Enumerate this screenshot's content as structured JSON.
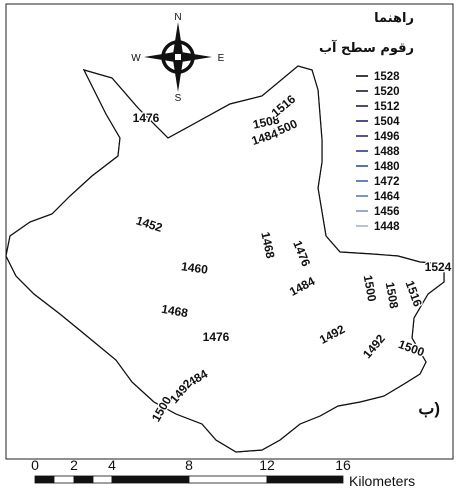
{
  "legend": {
    "title": "راهنما",
    "subtitle": "رقوم سطح آب",
    "items": [
      {
        "label": "1528",
        "color": "#111111"
      },
      {
        "label": "1520",
        "color": "#1a1a3a"
      },
      {
        "label": "1512",
        "color": "#1e1e5a"
      },
      {
        "label": "1504",
        "color": "#22226e"
      },
      {
        "label": "1496",
        "color": "#28287c"
      },
      {
        "label": "1488",
        "color": "#2c3a8c"
      },
      {
        "label": "1480",
        "color": "#2f4f9a"
      },
      {
        "label": "1472",
        "color": "#3e66a8"
      },
      {
        "label": "1464",
        "color": "#5a7fb6"
      },
      {
        "label": "1456",
        "color": "#7c97c2"
      },
      {
        "label": "1448",
        "color": "#a8b3cf"
      }
    ]
  },
  "north_arrow": {
    "n": "N",
    "s": "S",
    "e": "E",
    "w": "W"
  },
  "panel_label": "ب)",
  "contour_labels": [
    {
      "text": "1476"
    },
    {
      "text": "1452"
    },
    {
      "text": "1460"
    },
    {
      "text": "1468"
    },
    {
      "text": "1476"
    },
    {
      "text": "1468"
    },
    {
      "text": "1476"
    },
    {
      "text": "1484"
    },
    {
      "text": "1492"
    },
    {
      "text": "1484"
    },
    {
      "text": "1492"
    },
    {
      "text": "1500"
    },
    {
      "text": "1500"
    },
    {
      "text": "1508"
    },
    {
      "text": "1516"
    },
    {
      "text": "1524"
    },
    {
      "text": "1500"
    },
    {
      "text": "1508"
    },
    {
      "text": "1516"
    },
    {
      "text": "1492"
    },
    {
      "text": "1484"
    },
    {
      "text": "1500"
    }
  ],
  "scale_bar": {
    "ticks": [
      "0",
      "2",
      "4",
      "8",
      "12",
      "16"
    ],
    "unit": "Kilometers"
  }
}
